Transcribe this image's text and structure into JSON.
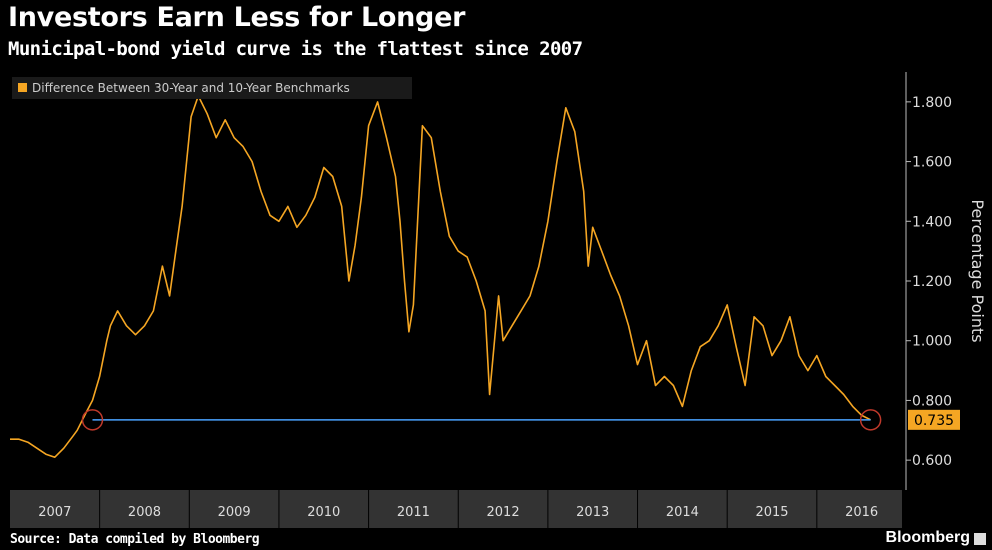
{
  "header": {
    "title": "Investors Earn Less for Longer",
    "subtitle": "Municipal-bond yield curve is the flattest since 2007"
  },
  "footer": {
    "source": "Source: Data compiled by Bloomberg",
    "brand": "Bloomberg"
  },
  "colors": {
    "series": "#f5a623",
    "highlight_line": "#4aa3ff",
    "callout_bg": "#f5a623",
    "circle": "#c0392b",
    "axis_text": "#dddddd"
  },
  "chart_data": {
    "type": "line",
    "title": "Investors Earn Less for Longer",
    "subtitle": "Municipal-bond yield curve is the flattest since 2007",
    "ylabel": "Percentage Points",
    "xlabel": "",
    "legend": {
      "position": "top-left",
      "entries": [
        "Difference Between 30-Year and 10-Year Benchmarks"
      ]
    },
    "y_axis_side": "right",
    "ylim": [
      0.5,
      1.9
    ],
    "yticks": [
      0.6,
      0.8,
      1.0,
      1.2,
      1.4,
      1.6,
      1.8
    ],
    "ytick_labels": [
      "0.600",
      "0.800",
      "1.000",
      "1.200",
      "1.400",
      "1.600",
      "1.800"
    ],
    "xlim": [
      2007.0,
      2016.95
    ],
    "xtick_labels": [
      "2007",
      "2008",
      "2009",
      "2010",
      "2011",
      "2012",
      "2013",
      "2014",
      "2015",
      "2016"
    ],
    "grid": false,
    "reference_line": {
      "value": 0.735,
      "x_start": 2007.92,
      "x_end": 2016.6
    },
    "latest_value_label": "0.735",
    "series": [
      {
        "name": "Difference Between 30-Year and 10-Year Benchmarks",
        "x": [
          2007.0,
          2007.1,
          2007.2,
          2007.3,
          2007.4,
          2007.5,
          2007.6,
          2007.7,
          2007.75,
          2007.8,
          2007.85,
          2007.92,
          2008.0,
          2008.08,
          2008.12,
          2008.2,
          2008.3,
          2008.4,
          2008.5,
          2008.6,
          2008.7,
          2008.78,
          2008.85,
          2008.92,
          2008.97,
          2009.02,
          2009.1,
          2009.2,
          2009.3,
          2009.4,
          2009.5,
          2009.6,
          2009.7,
          2009.8,
          2009.9,
          2010.0,
          2010.1,
          2010.2,
          2010.3,
          2010.4,
          2010.5,
          2010.6,
          2010.7,
          2010.78,
          2010.85,
          2010.92,
          2011.0,
          2011.1,
          2011.2,
          2011.3,
          2011.35,
          2011.4,
          2011.45,
          2011.5,
          2011.6,
          2011.7,
          2011.8,
          2011.9,
          2012.0,
          2012.1,
          2012.2,
          2012.3,
          2012.35,
          2012.45,
          2012.5,
          2012.6,
          2012.7,
          2012.8,
          2012.9,
          2013.0,
          2013.1,
          2013.2,
          2013.3,
          2013.4,
          2013.45,
          2013.5,
          2013.6,
          2013.7,
          2013.8,
          2013.9,
          2014.0,
          2014.1,
          2014.2,
          2014.3,
          2014.4,
          2014.5,
          2014.6,
          2014.7,
          2014.8,
          2014.9,
          2015.0,
          2015.1,
          2015.2,
          2015.3,
          2015.4,
          2015.5,
          2015.6,
          2015.7,
          2015.8,
          2015.9,
          2016.0,
          2016.1,
          2016.2,
          2016.3,
          2016.4,
          2016.5,
          2016.6
        ],
        "values": [
          0.67,
          0.67,
          0.66,
          0.64,
          0.62,
          0.61,
          0.64,
          0.68,
          0.7,
          0.73,
          0.76,
          0.8,
          0.88,
          1.0,
          1.05,
          1.1,
          1.05,
          1.02,
          1.05,
          1.1,
          1.25,
          1.15,
          1.3,
          1.45,
          1.6,
          1.75,
          1.82,
          1.76,
          1.68,
          1.74,
          1.68,
          1.65,
          1.6,
          1.5,
          1.42,
          1.4,
          1.45,
          1.38,
          1.42,
          1.48,
          1.58,
          1.55,
          1.45,
          1.2,
          1.32,
          1.48,
          1.72,
          1.8,
          1.68,
          1.55,
          1.4,
          1.2,
          1.03,
          1.12,
          1.72,
          1.68,
          1.5,
          1.35,
          1.3,
          1.28,
          1.2,
          1.1,
          0.82,
          1.15,
          1.0,
          1.05,
          1.1,
          1.15,
          1.25,
          1.4,
          1.6,
          1.78,
          1.7,
          1.5,
          1.25,
          1.38,
          1.3,
          1.22,
          1.15,
          1.05,
          0.92,
          1.0,
          0.85,
          0.88,
          0.85,
          0.78,
          0.9,
          0.98,
          1.0,
          1.05,
          1.12,
          0.98,
          0.85,
          1.08,
          1.05,
          0.95,
          1.0,
          1.08,
          0.95,
          0.9,
          0.95,
          0.88,
          0.85,
          0.82,
          0.78,
          0.75,
          0.735
        ]
      }
    ]
  }
}
